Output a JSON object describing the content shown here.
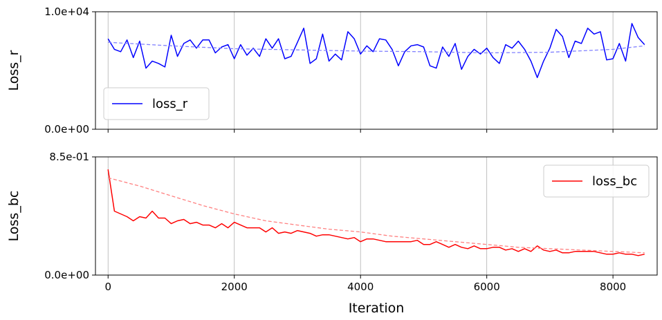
{
  "chart_data": [
    {
      "type": "line",
      "ylabel": "Loss_r",
      "xlabel": "",
      "xlim": [
        -200,
        8700
      ],
      "ylim": [
        0,
        10000
      ],
      "ytick_labels": [
        "0.0e+00",
        "1.0e+04"
      ],
      "xticks": [
        0,
        2000,
        4000,
        6000,
        8000
      ],
      "grid": "vertical",
      "legend_position": "lower-left",
      "series": [
        {
          "name": "loss_r",
          "color": "#0000ff",
          "style": "solid",
          "x": [
            0,
            100,
            200,
            300,
            400,
            500,
            600,
            700,
            800,
            900,
            1000,
            1100,
            1200,
            1300,
            1400,
            1500,
            1600,
            1700,
            1800,
            1900,
            2000,
            2100,
            2200,
            2300,
            2400,
            2500,
            2600,
            2700,
            2800,
            2900,
            3000,
            3100,
            3200,
            3300,
            3400,
            3500,
            3600,
            3700,
            3800,
            3900,
            4000,
            4100,
            4200,
            4300,
            4400,
            4500,
            4600,
            4700,
            4800,
            4900,
            5000,
            5100,
            5200,
            5300,
            5400,
            5500,
            5600,
            5700,
            5800,
            5900,
            6000,
            6100,
            6200,
            6300,
            6400,
            6500,
            6600,
            6700,
            6800,
            6900,
            7000,
            7100,
            7200,
            7300,
            7400,
            7500,
            7600,
            7700,
            7800,
            7900,
            8000,
            8100,
            8200,
            8300,
            8400,
            8500
          ],
          "y": [
            7700,
            6800,
            6600,
            7600,
            6100,
            7500,
            5200,
            5800,
            5600,
            5300,
            8000,
            6200,
            7300,
            7600,
            6900,
            7600,
            7600,
            6500,
            7000,
            7200,
            6000,
            7200,
            6300,
            6900,
            6200,
            7700,
            6900,
            7700,
            6000,
            6200,
            7400,
            8600,
            5600,
            6000,
            8100,
            5800,
            6400,
            5900,
            8300,
            7700,
            6400,
            7100,
            6600,
            7700,
            7600,
            6800,
            5400,
            6600,
            7100,
            7200,
            7000,
            5400,
            5200,
            7000,
            6200,
            7300,
            5100,
            6200,
            6800,
            6400,
            6900,
            6100,
            5600,
            7200,
            6900,
            7500,
            6800,
            5800,
            4400,
            5800,
            6900,
            8500,
            7900,
            6100,
            7500,
            7300,
            8600,
            8100,
            8300,
            5900,
            6000,
            7300,
            5800,
            9000,
            7800,
            7200
          ]
        },
        {
          "name": "",
          "color": "#8080ff",
          "style": "dashed",
          "x": [
            0,
            1000,
            2000,
            3000,
            4000,
            5000,
            6000,
            7000,
            8000,
            8500
          ],
          "y": [
            7400,
            7100,
            6850,
            6750,
            6650,
            6600,
            6500,
            6550,
            6800,
            7100
          ]
        }
      ]
    },
    {
      "type": "line",
      "ylabel": "Loss_bc",
      "xlabel": "Iteration",
      "xlim": [
        -200,
        8700
      ],
      "ylim": [
        0,
        0.85
      ],
      "ytick_labels": [
        "0.0e+00",
        "8.5e-01"
      ],
      "xticks": [
        0,
        2000,
        4000,
        6000,
        8000
      ],
      "grid": "vertical",
      "legend_position": "top-right",
      "series": [
        {
          "name": "loss_bc",
          "color": "#ff0000",
          "style": "solid",
          "x": [
            0,
            100,
            200,
            300,
            400,
            500,
            600,
            700,
            800,
            900,
            1000,
            1100,
            1200,
            1300,
            1400,
            1500,
            1600,
            1700,
            1800,
            1900,
            2000,
            2100,
            2200,
            2300,
            2400,
            2500,
            2600,
            2700,
            2800,
            2900,
            3000,
            3100,
            3200,
            3300,
            3400,
            3500,
            3600,
            3700,
            3800,
            3900,
            4000,
            4100,
            4200,
            4300,
            4400,
            4500,
            4600,
            4700,
            4800,
            4900,
            5000,
            5100,
            5200,
            5300,
            5400,
            5500,
            5600,
            5700,
            5800,
            5900,
            6000,
            6100,
            6200,
            6300,
            6400,
            6500,
            6600,
            6700,
            6800,
            6900,
            7000,
            7100,
            7200,
            7300,
            7400,
            7500,
            7600,
            7700,
            7800,
            7900,
            8000,
            8100,
            8200,
            8300,
            8400,
            8500
          ],
          "y": [
            0.76,
            0.46,
            0.44,
            0.42,
            0.39,
            0.42,
            0.41,
            0.46,
            0.41,
            0.41,
            0.37,
            0.39,
            0.4,
            0.37,
            0.38,
            0.36,
            0.36,
            0.34,
            0.37,
            0.34,
            0.38,
            0.36,
            0.34,
            0.34,
            0.34,
            0.31,
            0.34,
            0.3,
            0.31,
            0.3,
            0.32,
            0.31,
            0.3,
            0.28,
            0.29,
            0.29,
            0.28,
            0.27,
            0.26,
            0.27,
            0.24,
            0.26,
            0.26,
            0.25,
            0.24,
            0.24,
            0.24,
            0.24,
            0.24,
            0.25,
            0.22,
            0.22,
            0.24,
            0.22,
            0.2,
            0.22,
            0.2,
            0.19,
            0.21,
            0.19,
            0.19,
            0.2,
            0.2,
            0.18,
            0.19,
            0.17,
            0.19,
            0.17,
            0.21,
            0.18,
            0.17,
            0.18,
            0.16,
            0.16,
            0.17,
            0.17,
            0.17,
            0.17,
            0.16,
            0.15,
            0.15,
            0.16,
            0.15,
            0.15,
            0.14,
            0.15
          ]
        },
        {
          "name": "",
          "color": "#ff8080",
          "style": "dashed",
          "x": [
            0,
            500,
            1000,
            1500,
            2000,
            2500,
            3000,
            3500,
            4000,
            4500,
            5000,
            5500,
            6000,
            6500,
            7000,
            7500,
            8000,
            8500
          ],
          "y": [
            0.7,
            0.64,
            0.57,
            0.5,
            0.44,
            0.39,
            0.36,
            0.33,
            0.31,
            0.28,
            0.26,
            0.24,
            0.22,
            0.2,
            0.19,
            0.18,
            0.17,
            0.16
          ]
        }
      ]
    }
  ]
}
